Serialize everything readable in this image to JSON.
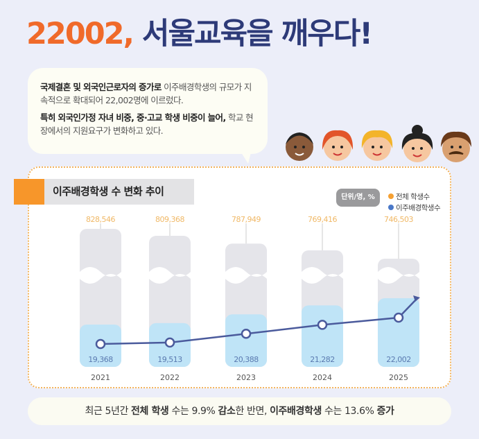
{
  "header": {
    "title_number": "22002,",
    "title_text": " 서울교육을 깨우다!"
  },
  "bubble": {
    "p1_bold": "국제결혼 및 외국인근로자의 증가로",
    "p1_rest": " 이주배경학생의 규모가 지속적으로 확대되어 22,002명에 이르렀다.",
    "p2_bold": "특히 외국인가정 자녀 비중, 중·고교 학생 비중이 늘어,",
    "p2_rest": " 학교 현장에서의 지원요구가 변화하고 있다."
  },
  "colors": {
    "orange": "#f06a2a",
    "navy": "#2d3a78",
    "total_bar": "#e5e5ea",
    "migrant_bar": "#bfe4f7",
    "line": "#4a5a9c",
    "total_label": "#f0b866",
    "migrant_label": "#5a7ab0"
  },
  "chart_data": {
    "type": "bar",
    "title": "이주배경학생 수 변화 추이",
    "unit": "단위/명, %",
    "categories": [
      "2021",
      "2022",
      "2023",
      "2024",
      "2025"
    ],
    "series": [
      {
        "name": "전체 학생수",
        "legend_color": "#f5a032",
        "values": [
          828546,
          809368,
          787949,
          769416,
          746503
        ],
        "labels": [
          "828,546",
          "809,368",
          "787,949",
          "769,416",
          "746,503"
        ]
      },
      {
        "name": "이주배경학생수",
        "legend_color": "#4a78c8",
        "values": [
          19368,
          19513,
          20388,
          21282,
          22002
        ],
        "labels": [
          "19,368",
          "19,513",
          "20,388",
          "21,282",
          "22,002"
        ]
      }
    ],
    "axis_break": true,
    "grid": false,
    "legend": "top-right"
  },
  "footer": {
    "t1": "최근 5년간 ",
    "b1": "전체 학생",
    "t2": " 수는 9.9% ",
    "b2": "감소",
    "t3": "한 반면, ",
    "b3": "이주배경학생",
    "t4": " 수는 13.6% ",
    "b4": "증가"
  }
}
